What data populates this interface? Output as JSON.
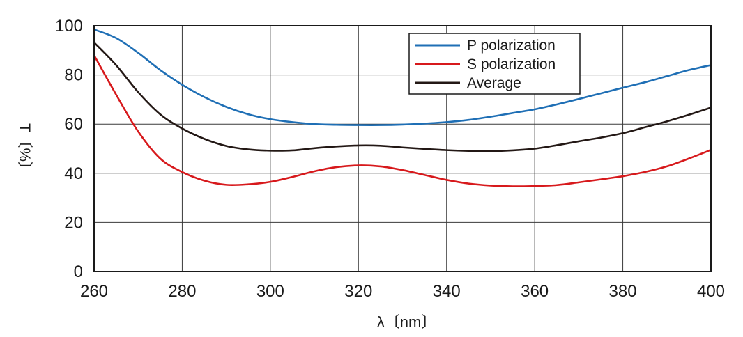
{
  "chart_data": {
    "type": "line",
    "xlabel": "λ〔nm〕",
    "ylabel": "T〔%〕",
    "xlim": [
      260,
      400
    ],
    "ylim": [
      0,
      100
    ],
    "xticks": [
      260,
      280,
      300,
      320,
      340,
      360,
      380,
      400
    ],
    "yticks": [
      0,
      20,
      40,
      60,
      80,
      100
    ],
    "grid": true,
    "legend_position": "top-right",
    "series": [
      {
        "name": "P polarization",
        "color": "#1f6fb5",
        "x": [
          260,
          265,
          270,
          275,
          280,
          285,
          290,
          295,
          300,
          305,
          310,
          315,
          320,
          325,
          330,
          335,
          340,
          345,
          350,
          355,
          360,
          365,
          370,
          375,
          380,
          385,
          390,
          395,
          400
        ],
        "y": [
          98.5,
          95,
          89,
          82,
          76,
          71,
          67,
          64,
          62,
          60.8,
          60,
          59.7,
          59.6,
          59.6,
          59.8,
          60.2,
          60.8,
          61.7,
          63,
          64.5,
          66,
          68,
          70.2,
          72.5,
          74.8,
          77,
          79.5,
          82,
          84
        ]
      },
      {
        "name": "S polarization",
        "color": "#d7191c",
        "x": [
          260,
          265,
          270,
          275,
          280,
          285,
          290,
          295,
          300,
          305,
          310,
          315,
          320,
          325,
          330,
          335,
          340,
          345,
          350,
          355,
          360,
          365,
          370,
          375,
          380,
          385,
          390,
          395,
          400
        ],
        "y": [
          88,
          72,
          57,
          46,
          40.5,
          37,
          35.3,
          35.5,
          36.5,
          38.5,
          40.8,
          42.5,
          43.2,
          42.8,
          41.3,
          39.3,
          37.3,
          35.8,
          35,
          34.7,
          34.8,
          35.2,
          36.3,
          37.5,
          38.8,
          40.5,
          42.8,
          46,
          49.5
        ]
      },
      {
        "name": "Average",
        "color": "#231815",
        "x": [
          260,
          265,
          270,
          275,
          280,
          285,
          290,
          295,
          300,
          305,
          310,
          315,
          320,
          325,
          330,
          335,
          340,
          345,
          350,
          355,
          360,
          365,
          370,
          375,
          380,
          385,
          390,
          395,
          400
        ],
        "y": [
          93.2,
          84,
          73,
          64,
          58.2,
          54,
          51.1,
          49.7,
          49.2,
          49.3,
          50.2,
          50.9,
          51.3,
          51.2,
          50.5,
          49.9,
          49.4,
          49.1,
          49,
          49.3,
          50,
          51.4,
          53,
          54.5,
          56.3,
          58.7,
          61.1,
          63.8,
          66.7
        ]
      }
    ]
  }
}
